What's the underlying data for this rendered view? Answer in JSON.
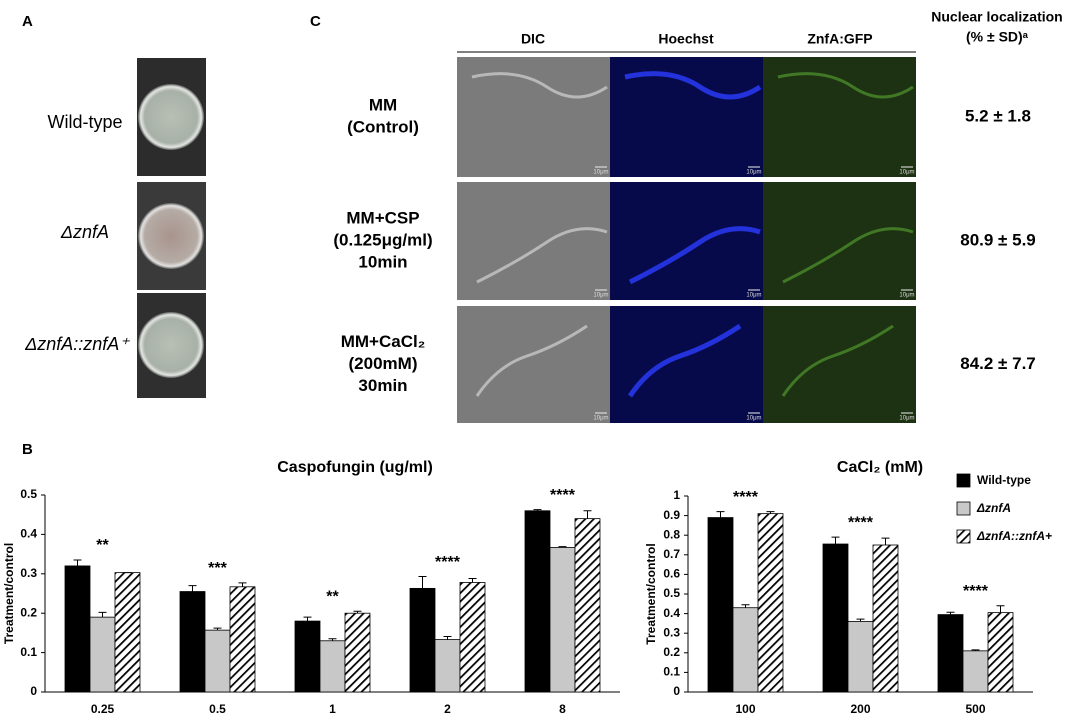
{
  "panel_a": {
    "label": "A",
    "strains": [
      "Wild-type",
      "ΔznfA",
      "ΔznfA::znfA⁺"
    ]
  },
  "panel_b": {
    "label": "B"
  },
  "panel_c": {
    "label": "C",
    "columns": [
      "DIC",
      "Hoechst",
      "ZnfA:GFP"
    ],
    "value_header": [
      "Nuclear localization",
      "(% ± SD)ᵃ"
    ],
    "scale_bar": "10μm",
    "rows": [
      {
        "condition": [
          "MM",
          "(Control)"
        ],
        "value": "5.2 ± 1.8"
      },
      {
        "condition": [
          "MM+CSP",
          "(0.125μg/ml)",
          "10min"
        ],
        "value": "80.9 ± 5.9"
      },
      {
        "condition": [
          "MM+CaCl₂",
          "(200mM)",
          "30min"
        ],
        "value": "84.2 ± 7.7"
      }
    ]
  },
  "chart_data": [
    {
      "type": "bar",
      "title": "Caspofungin (ug/ml)",
      "y_label": "Treatment/control",
      "categories": [
        "0.25",
        "0.5",
        "1",
        "2",
        "8"
      ],
      "ylim": [
        0,
        0.5
      ],
      "yticks": [
        0,
        0.1,
        0.2,
        0.3,
        0.4,
        0.5
      ],
      "series": [
        {
          "color": "#000000",
          "values": [
            0.32,
            0.255,
            0.18,
            0.263,
            0.46
          ],
          "errors": [
            0.015,
            0.015,
            0.01,
            0.03,
            0.003
          ]
        },
        {
          "color": "#c8c8c8",
          "values": [
            0.19,
            0.157,
            0.13,
            0.133,
            0.367
          ],
          "errors": [
            0.012,
            0.005,
            0.005,
            0.008,
            0.002
          ]
        },
        {
          "color": "#000000",
          "pattern": "hatch",
          "values": [
            0.303,
            0.267,
            0.2,
            0.278,
            0.44
          ],
          "errors": [
            0,
            0.01,
            0.005,
            0.01,
            0.02
          ]
        }
      ],
      "annotations": [
        "**",
        "***",
        "**",
        "****",
        "****"
      ]
    },
    {
      "type": "bar",
      "title": "CaCl₂ (mM)",
      "y_label": "Treatment/control",
      "categories": [
        "100",
        "200",
        "500"
      ],
      "ylim": [
        0,
        1
      ],
      "yticks": [
        0,
        0.1,
        0.2,
        0.3,
        0.4,
        0.5,
        0.6,
        0.7,
        0.8,
        0.9,
        1
      ],
      "legend": "upper right",
      "series": [
        {
          "name": "Wild-type",
          "color": "#000000",
          "values": [
            0.89,
            0.755,
            0.395
          ],
          "errors": [
            0.03,
            0.035,
            0.012
          ]
        },
        {
          "name": "ΔznfA",
          "color": "#c8c8c8",
          "values": [
            0.43,
            0.36,
            0.21
          ],
          "errors": [
            0.015,
            0.012,
            0.005
          ]
        },
        {
          "name": "ΔznfA::znfA+",
          "color": "#000000",
          "pattern": "hatch",
          "values": [
            0.91,
            0.75,
            0.405
          ],
          "errors": [
            0.01,
            0.035,
            0.035
          ]
        }
      ],
      "annotations": [
        "****",
        "****",
        "****"
      ]
    }
  ]
}
